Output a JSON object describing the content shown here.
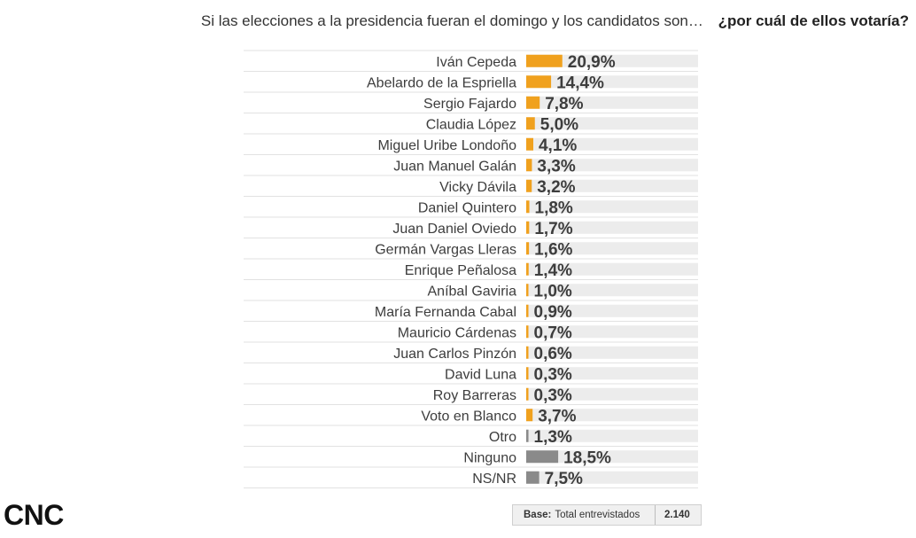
{
  "header": {
    "question": "Si las elecciones a la presidencia fueran el domingo y los candidatos son…",
    "question_bold": "¿por cuál de ellos votaría?"
  },
  "footer": {
    "logo": "CNC",
    "base_label": "Base:",
    "base_text": "Total entrevistados",
    "base_n": "2.140"
  },
  "colors": {
    "candidate": "#f0a11e",
    "other": "#8a8a8a",
    "track": "#ececec",
    "rule": "#e2e2e2"
  },
  "chart_data": {
    "type": "bar",
    "orientation": "horizontal",
    "title": "Si las elecciones a la presidencia fueran el domingo y los candidatos son… ¿por cuál de ellos votaría?",
    "xlim": [
      0,
      100
    ],
    "categories": [
      "Iván Cepeda",
      "Abelardo de la Espriella",
      "Sergio Fajardo",
      "Claudia López",
      "Miguel Uribe Londoño",
      "Juan Manuel Galán",
      "Vicky Dávila",
      "Daniel Quintero",
      "Juan Daniel Oviedo",
      "Germán Vargas Lleras",
      "Enrique Peñalosa",
      "Aníbal Gaviria",
      "María Fernanda Cabal",
      "Mauricio Cárdenas",
      "Juan Carlos Pinzón",
      "David Luna",
      "Roy Barreras",
      "Voto en Blanco",
      "Otro",
      "Ninguno",
      "NS/NR"
    ],
    "values": [
      20.9,
      14.4,
      7.8,
      5.0,
      4.1,
      3.3,
      3.2,
      1.8,
      1.7,
      1.6,
      1.4,
      1.0,
      0.9,
      0.7,
      0.6,
      0.3,
      0.3,
      3.7,
      1.3,
      18.5,
      7.5
    ],
    "value_labels": [
      "20,9%",
      "14,4%",
      "7,8%",
      "5,0%",
      "4,1%",
      "3,3%",
      "3,2%",
      "1,8%",
      "1,7%",
      "1,6%",
      "1,4%",
      "1,0%",
      "0,9%",
      "0,7%",
      "0,6%",
      "0,3%",
      "0,3%",
      "3,7%",
      "1,3%",
      "18,5%",
      "7,5%"
    ],
    "groups": [
      "candidate",
      "candidate",
      "candidate",
      "candidate",
      "candidate",
      "candidate",
      "candidate",
      "candidate",
      "candidate",
      "candidate",
      "candidate",
      "candidate",
      "candidate",
      "candidate",
      "candidate",
      "candidate",
      "candidate",
      "candidate",
      "other",
      "other",
      "other"
    ]
  }
}
